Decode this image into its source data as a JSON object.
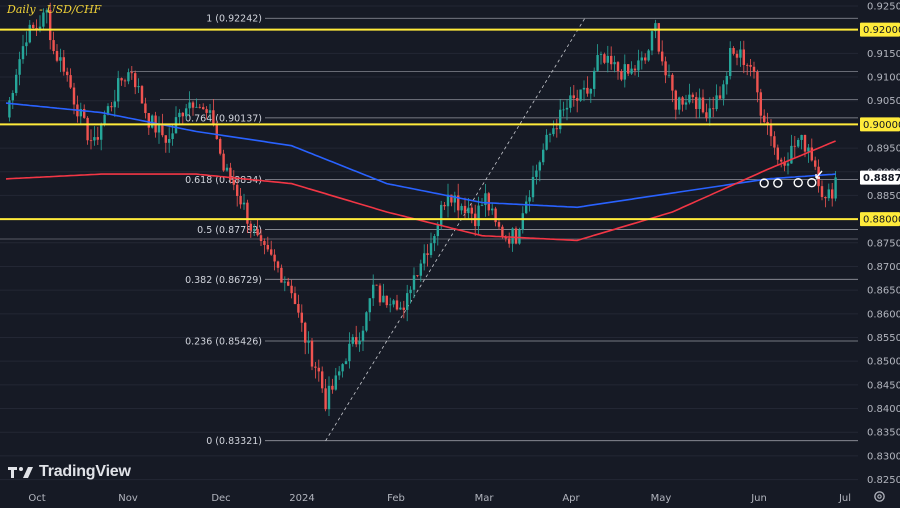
{
  "chart": {
    "title": "Daily - USD/CHF",
    "brand": "TradingView",
    "brand_icon": "tradingview-logo-icon",
    "settings_icon": "gear-icon",
    "colors": {
      "background": "#161a25",
      "up": "#26a69a",
      "down": "#ef5350",
      "key_level": "#ffeb3b",
      "sma_blue": "#2962ff",
      "sma_red": "#f23645",
      "axis_text": "#b2b5be",
      "fib_line": "#9598a1"
    }
  },
  "chart_data": {
    "type": "candlestick",
    "title": "Daily - USD/CHF",
    "y_range": [
      0.8275,
      0.926
    ],
    "y_ticks": [
      "0.92500",
      "0.92000",
      "0.91500",
      "0.91000",
      "0.90500",
      "0.90000",
      "0.89500",
      "0.89000",
      "0.88500",
      "0.88000",
      "0.87500",
      "0.87000",
      "0.86500",
      "0.86000",
      "0.85500",
      "0.85000",
      "0.84500",
      "0.84000",
      "0.83500",
      "0.83000",
      "0.82500"
    ],
    "x_labels": [
      "Oct",
      "Nov",
      "Dec",
      "2024",
      "Feb",
      "Mar",
      "Apr",
      "May",
      "Jun",
      "Jul"
    ],
    "current_price": "0.88876",
    "key_levels": [
      "0.92000",
      "0.90000",
      "0.88000"
    ],
    "fib_levels": [
      {
        "label": "1 (0.92242)",
        "value": 0.92242
      },
      {
        "label": "0.764 (0.90137)",
        "value": 0.90137
      },
      {
        "label": "0.618 (0.88834)",
        "value": 0.88834
      },
      {
        "label": "0.5 (0.87782)",
        "value": 0.87782
      },
      {
        "label": "0.382 (0.86729)",
        "value": 0.86729
      },
      {
        "label": "0.236 (0.85426)",
        "value": 0.85426
      },
      {
        "label": "0 (0.83321)",
        "value": 0.83321
      }
    ],
    "extra_levels": [
      0.9112,
      0.9053,
      0.8758
    ],
    "close_path": [
      [
        0,
        0.9015
      ],
      [
        3,
        0.9115
      ],
      [
        6,
        0.919
      ],
      [
        9,
        0.9205
      ],
      [
        12,
        0.9235
      ],
      [
        14,
        0.9155
      ],
      [
        17,
        0.9125
      ],
      [
        20,
        0.9055
      ],
      [
        23,
        0.8995
      ],
      [
        26,
        0.8955
      ],
      [
        28,
        0.9005
      ],
      [
        31,
        0.9045
      ],
      [
        34,
        0.9095
      ],
      [
        37,
        0.9115
      ],
      [
        39,
        0.907
      ],
      [
        42,
        0.901
      ],
      [
        45,
        0.8985
      ],
      [
        48,
        0.8965
      ],
      [
        50,
        0.9005
      ],
      [
        53,
        0.9045
      ],
      [
        56,
        0.9055
      ],
      [
        58,
        0.9025
      ],
      [
        61,
        0.9005
      ],
      [
        64,
        0.8905
      ],
      [
        67,
        0.8875
      ],
      [
        70,
        0.8825
      ],
      [
        72,
        0.8785
      ],
      [
        75,
        0.8735
      ],
      [
        78,
        0.8715
      ],
      [
        81,
        0.8685
      ],
      [
        84,
        0.8655
      ],
      [
        86,
        0.8595
      ],
      [
        89,
        0.8525
      ],
      [
        92,
        0.8475
      ],
      [
        94,
        0.8415
      ],
      [
        97,
        0.8455
      ],
      [
        100,
        0.8515
      ],
      [
        103,
        0.8545
      ],
      [
        106,
        0.8595
      ],
      [
        108,
        0.8655
      ],
      [
        111,
        0.8625
      ],
      [
        114,
        0.8645
      ],
      [
        117,
        0.8595
      ],
      [
        119,
        0.8665
      ],
      [
        122,
        0.8715
      ],
      [
        125,
        0.8755
      ],
      [
        127,
        0.8795
      ],
      [
        130,
        0.8865
      ],
      [
        133,
        0.8835
      ],
      [
        136,
        0.8825
      ],
      [
        138,
        0.8805
      ],
      [
        141,
        0.8845
      ],
      [
        144,
        0.8785
      ],
      [
        147,
        0.8765
      ],
      [
        150,
        0.8765
      ],
      [
        152,
        0.8825
      ],
      [
        155,
        0.8885
      ],
      [
        158,
        0.8945
      ],
      [
        161,
        0.8995
      ],
      [
        163,
        0.9015
      ],
      [
        166,
        0.9045
      ],
      [
        169,
        0.9055
      ],
      [
        172,
        0.9075
      ],
      [
        174,
        0.9135
      ],
      [
        177,
        0.9125
      ],
      [
        180,
        0.9115
      ],
      [
        183,
        0.9105
      ],
      [
        186,
        0.9125
      ],
      [
        188,
        0.9135
      ],
      [
        191,
        0.9205
      ],
      [
        194,
        0.9105
      ],
      [
        197,
        0.9045
      ],
      [
        199,
        0.9055
      ],
      [
        202,
        0.9065
      ],
      [
        205,
        0.9025
      ],
      [
        208,
        0.9045
      ],
      [
        211,
        0.9075
      ],
      [
        213,
        0.9145
      ],
      [
        216,
        0.9145
      ],
      [
        219,
        0.9125
      ],
      [
        222,
        0.9035
      ],
      [
        225,
        0.8985
      ],
      [
        227,
        0.8925
      ],
      [
        230,
        0.8935
      ],
      [
        233,
        0.8965
      ],
      [
        236,
        0.8955
      ],
      [
        238,
        0.8915
      ],
      [
        241,
        0.8835
      ],
      [
        244,
        0.8876
      ]
    ],
    "sma_blue": [
      [
        0,
        0.9045
      ],
      [
        28,
        0.9025
      ],
      [
        56,
        0.8985
      ],
      [
        84,
        0.8955
      ],
      [
        112,
        0.8875
      ],
      [
        140,
        0.8835
      ],
      [
        168,
        0.8825
      ],
      [
        196,
        0.8855
      ],
      [
        224,
        0.8885
      ],
      [
        244,
        0.8895
      ]
    ],
    "sma_red": [
      [
        0,
        0.8885
      ],
      [
        28,
        0.8895
      ],
      [
        56,
        0.8895
      ],
      [
        84,
        0.8875
      ],
      [
        112,
        0.8815
      ],
      [
        140,
        0.8765
      ],
      [
        168,
        0.8755
      ],
      [
        196,
        0.8815
      ],
      [
        224,
        0.8905
      ],
      [
        244,
        0.8965
      ]
    ]
  }
}
